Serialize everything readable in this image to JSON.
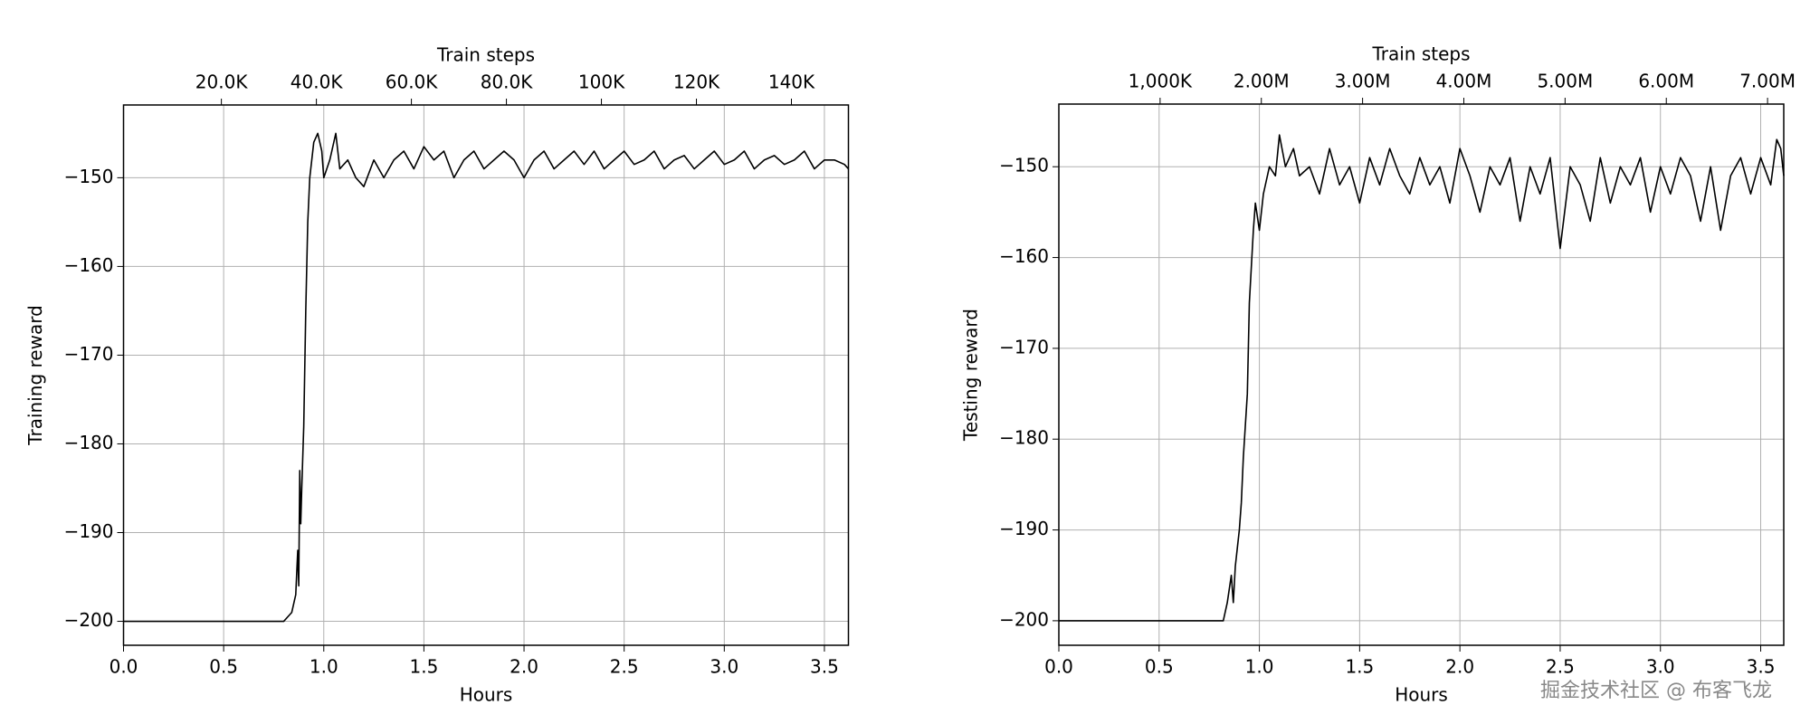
{
  "chart_data": [
    {
      "type": "line",
      "xlabel": "Hours",
      "ylabel": "Training reward",
      "x2label": "Train steps",
      "color": "#000000",
      "grid": true,
      "xlim": [
        0,
        3.62
      ],
      "ylim": [
        -202.7,
        -141.8
      ],
      "xticks": [
        {
          "value": 0,
          "label": "0.0"
        },
        0.5,
        {
          "value": 1,
          "label": "1.0"
        },
        1.5,
        {
          "value": 2,
          "label": "2.0"
        },
        2.5,
        {
          "value": 3,
          "label": "3.0"
        },
        3.5
      ],
      "yticks": [
        {
          "value": -200,
          "label": "−200"
        },
        {
          "value": -190,
          "label": "−190"
        },
        {
          "value": -180,
          "label": "−180"
        },
        {
          "value": -170,
          "label": "−170"
        },
        {
          "value": -160,
          "label": "−160"
        },
        {
          "value": -150,
          "label": "−150"
        }
      ],
      "x2lim": [
        -600,
        152000
      ],
      "x2ticks": [
        {
          "value": 20000,
          "label": "20.0K"
        },
        {
          "value": 40000,
          "label": "40.0K"
        },
        {
          "value": 60000,
          "label": "60.0K"
        },
        {
          "value": 80000,
          "label": "80.0K"
        },
        {
          "value": 100000,
          "label": "100K"
        },
        {
          "value": 120000,
          "label": "120K"
        },
        {
          "value": 140000,
          "label": "140K"
        }
      ],
      "x": [
        0,
        0.8,
        0.82,
        0.84,
        0.86,
        0.87,
        0.875,
        0.88,
        0.885,
        0.89,
        0.9,
        0.91,
        0.92,
        0.93,
        0.95,
        0.97,
        0.99,
        1.0,
        1.03,
        1.06,
        1.08,
        1.12,
        1.16,
        1.2,
        1.25,
        1.3,
        1.35,
        1.4,
        1.45,
        1.5,
        1.55,
        1.6,
        1.65,
        1.7,
        1.75,
        1.8,
        1.85,
        1.9,
        1.95,
        2.0,
        2.05,
        2.1,
        2.15,
        2.2,
        2.25,
        2.3,
        2.35,
        2.4,
        2.45,
        2.5,
        2.55,
        2.6,
        2.65,
        2.7,
        2.75,
        2.8,
        2.85,
        2.9,
        2.95,
        3.0,
        3.05,
        3.1,
        3.15,
        3.2,
        3.25,
        3.3,
        3.35,
        3.4,
        3.45,
        3.5,
        3.55,
        3.6,
        3.62
      ],
      "values": [
        -200,
        -200,
        -199.5,
        -199,
        -197,
        -192,
        -196,
        -183,
        -189,
        -185,
        -178,
        -165,
        -155,
        -150,
        -146,
        -145,
        -147,
        -150,
        -148,
        -145,
        -149,
        -148,
        -150,
        -151,
        -148,
        -150,
        -148,
        -147,
        -149,
        -146.5,
        -148,
        -147,
        -150,
        -148,
        -147,
        -149,
        -148,
        -147,
        -148,
        -150,
        -148,
        -147,
        -149,
        -148,
        -147,
        -148.5,
        -147,
        -149,
        -148,
        -147,
        -148.5,
        -148,
        -147,
        -149,
        -148,
        -147.5,
        -149,
        -148,
        -147,
        -148.5,
        -148,
        -147,
        -149,
        -148,
        -147.5,
        -148.5,
        -148,
        -147,
        -149,
        -148,
        -148,
        -148.5,
        -149
      ]
    },
    {
      "type": "line",
      "xlabel": "Hours",
      "ylabel": "Testing reward",
      "x2label": "Train steps",
      "color": "#000000",
      "grid": true,
      "xlim": [
        0,
        3.615
      ],
      "ylim": [
        -202.7,
        -143.1
      ],
      "xticks": [
        {
          "value": 0,
          "label": "0.0"
        },
        0.5,
        {
          "value": 1,
          "label": "1.0"
        },
        1.5,
        {
          "value": 2,
          "label": "2.0"
        },
        2.5,
        {
          "value": 3,
          "label": "3.0"
        },
        3.5
      ],
      "yticks": [
        {
          "value": -200,
          "label": "−200"
        },
        {
          "value": -190,
          "label": "−190"
        },
        {
          "value": -180,
          "label": "−180"
        },
        {
          "value": -170,
          "label": "−170"
        },
        {
          "value": -160,
          "label": "−160"
        },
        {
          "value": -150,
          "label": "−150"
        }
      ],
      "x2lim": [
        0,
        7160000
      ],
      "x2ticks": [
        {
          "value": 1000000,
          "label": "1,000K"
        },
        {
          "value": 2000000,
          "label": "2.00M"
        },
        {
          "value": 3000000,
          "label": "3.00M"
        },
        {
          "value": 4000000,
          "label": "4.00M"
        },
        {
          "value": 5000000,
          "label": "5.00M"
        },
        {
          "value": 6000000,
          "label": "6.00M"
        },
        {
          "value": 7000000,
          "label": "7.00M"
        }
      ],
      "x": [
        0,
        0.82,
        0.84,
        0.86,
        0.87,
        0.88,
        0.9,
        0.91,
        0.92,
        0.94,
        0.95,
        0.96,
        0.97,
        0.98,
        1.0,
        1.02,
        1.05,
        1.08,
        1.1,
        1.13,
        1.17,
        1.2,
        1.25,
        1.3,
        1.35,
        1.4,
        1.45,
        1.5,
        1.55,
        1.6,
        1.65,
        1.7,
        1.75,
        1.8,
        1.85,
        1.9,
        1.95,
        2.0,
        2.05,
        2.1,
        2.15,
        2.2,
        2.25,
        2.3,
        2.35,
        2.4,
        2.45,
        2.5,
        2.55,
        2.6,
        2.65,
        2.7,
        2.75,
        2.8,
        2.85,
        2.9,
        2.95,
        3.0,
        3.05,
        3.1,
        3.15,
        3.2,
        3.25,
        3.3,
        3.35,
        3.4,
        3.45,
        3.5,
        3.55,
        3.58,
        3.6,
        3.615
      ],
      "values": [
        -200,
        -200,
        -198,
        -195,
        -198,
        -194,
        -190,
        -187,
        -182,
        -175,
        -165,
        -161,
        -157,
        -154,
        -157,
        -153,
        -150,
        -151,
        -146.5,
        -150,
        -148,
        -151,
        -150,
        -153,
        -148,
        -152,
        -150,
        -154,
        -149,
        -152,
        -148,
        -151,
        -153,
        -149,
        -152,
        -150,
        -154,
        -148,
        -151,
        -155,
        -150,
        -152,
        -149,
        -156,
        -150,
        -153,
        -149,
        -159,
        -150,
        -152,
        -156,
        -149,
        -154,
        -150,
        -152,
        -149,
        -155,
        -150,
        -153,
        -149,
        -151,
        -156,
        -150,
        -157,
        -151,
        -149,
        -153,
        -149,
        -152,
        -147,
        -148,
        -151
      ]
    }
  ],
  "watermark": "掘金技术社区 @ 布客飞龙"
}
